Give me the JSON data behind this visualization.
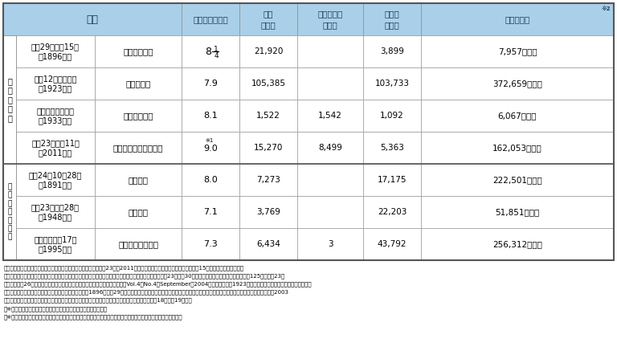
{
  "header_bg": "#aacfe8",
  "border_color": "#999999",
  "border_dark": "#555555",
  "text_color": "#000000",
  "header_text_color": "#1a3a5c",
  "col_headers_line1": [
    "地震",
    "マグニチュード",
    "死者",
    "行方不明者",
    "負傷者",
    "家屋被害数"
  ],
  "col_headers_line2": [
    "",
    "",
    "（名）",
    "（名）",
    "（名）",
    ""
  ],
  "rows": [
    {
      "date": "明治29年６月15日\n（1896年）",
      "name": "明治三陸地震",
      "magnitude": "8 1/4",
      "deaths": "21,920",
      "missing": "",
      "injured": "3,899",
      "damage": "7,957（戸）",
      "category": 0
    },
    {
      "date": "大正12年９月１日\n（1923年）",
      "name": "関東大震災",
      "magnitude": "7.9",
      "deaths": "105,385",
      "missing": "",
      "injured": "103,733",
      "damage": "372,659（棟）",
      "category": 0
    },
    {
      "date": "昭和８年３月３日\n（1933年）",
      "name": "昭和三陸地震",
      "magnitude": "8.1",
      "deaths": "1,522",
      "missing": "1,542",
      "injured": "1,092",
      "damage": "6,067（棟）",
      "category": 0
    },
    {
      "date": "平成23年３月11日\n（2011年）",
      "name": "東北地方太平洋沖地震",
      "magnitude": "9.0",
      "deaths": "15,270",
      "missing": "8,499",
      "injured": "5,363",
      "damage": "162,053（戸）",
      "category": 0
    },
    {
      "date": "明治24年10月28日\n（1891年）",
      "name": "濃尾地震",
      "magnitude": "8.0",
      "deaths": "7,273",
      "missing": "",
      "injured": "17,175",
      "damage": "222,501（棟）",
      "category": 1
    },
    {
      "date": "昭和23年６月28日\n（1948年）",
      "name": "福井地震",
      "magnitude": "7.1",
      "deaths": "3,769",
      "missing": "",
      "injured": "22,203",
      "damage": "51,851（棟）",
      "category": 1
    },
    {
      "date": "平成７年１月17日\n（1995年）",
      "name": "阪神・淡路大震災",
      "magnitude": "7.3",
      "deaths": "6,434",
      "missing": "3",
      "injured": "43,792",
      "damage": "256,312（棟）",
      "category": 1
    }
  ],
  "cat1_label": "海\n溝\n型\n地\n震",
  "cat2_label": "内\n陸\n直\n下\n型\n地\n震",
  "footnotes": [
    "（出典）・マグニチュード：東北地方太平洋沖地震は気象庁「平成23年（2011年）東北地方太平洋沖地震」について（第15報）より，他は理科年表",
    "　　　　・死者，行方不明者，負傷者，家屋被害数：東北地方太平洋沖地震：緊急災害対策本部資料（平成23年５月30日）及び消防庁災害対策本部資料（第125版，平成23年",
    "　　　　５月26日），関東大震災：日本地震工学会「『日本地震工学会論文集Vol.4，No.4，September　2004』，関東地震（1923年９月１日）による被害要因別死者数の推",
    "　　　　定，諸井孝文・武村雅之」，明治三陸地震：「1896（明治29）年「岩手県統計書」」，昭和三陸地震・濃尾地震・福井地震：東京大学出版社「日本被害地震総覧2003",
    "　　　　年初版，宇佐見龍夫」，阪神大震災：「消防庁「阪神・淡路大震災について（確定報）平成18年５月19日」」",
    "　※１：東北地方太平洋沖地震はモーメントマグニチュードを記載",
    "　※２：数値は各資料に記載されている家屋被害の全壊，半壊，流失家屋数，全焼，半焼の被害数の合計値を記載。"
  ]
}
